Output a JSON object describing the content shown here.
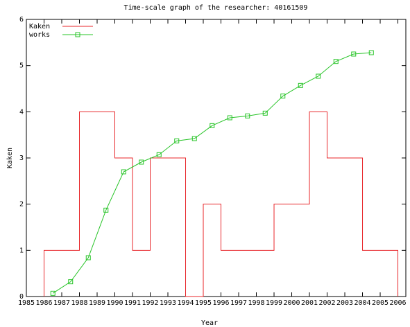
{
  "chart_data": {
    "type": "line",
    "title": "Time-scale graph of the researcher: 40161509",
    "xlabel": "Year",
    "ylabel": "Kaken",
    "xlim": [
      1985,
      2006.45
    ],
    "ylim": [
      0,
      6
    ],
    "xticks": [
      1985,
      1986,
      1987,
      1988,
      1989,
      1990,
      1991,
      1992,
      1993,
      1994,
      1995,
      1996,
      1997,
      1998,
      1999,
      2000,
      2001,
      2002,
      2003,
      2004,
      2005,
      2006
    ],
    "yticks": [
      0,
      1,
      2,
      3,
      4,
      5,
      6
    ],
    "legend": "top-left",
    "series": [
      {
        "name": "Kaken",
        "color": "#e8262a",
        "step": true,
        "x": [
          1986,
          1987,
          1988,
          1989,
          1990,
          1991,
          1992,
          1993,
          1994,
          1995,
          1996,
          1997,
          1998,
          1999,
          2000,
          2001,
          2002,
          2003,
          2004,
          2005
        ],
        "values": [
          1,
          1,
          4,
          4,
          3,
          1,
          3,
          3,
          0,
          2,
          1,
          1,
          1,
          2,
          2,
          4,
          3,
          3,
          1,
          1
        ]
      },
      {
        "name": "works",
        "color": "#27c427",
        "marker": "square",
        "x": [
          1986.5,
          1987.5,
          1988.5,
          1989.5,
          1990.5,
          1991.5,
          1992.5,
          1993.5,
          1994.5,
          1995.5,
          1996.5,
          1997.5,
          1998.5,
          1999.5,
          2000.5,
          2001.5,
          2002.5,
          2003.5,
          2004.5
        ],
        "values": [
          0.07,
          0.32,
          0.84,
          1.87,
          2.7,
          2.91,
          3.07,
          3.37,
          3.42,
          3.7,
          3.87,
          3.91,
          3.97,
          4.34,
          4.57,
          4.77,
          5.09,
          5.25,
          5.28
        ]
      }
    ]
  }
}
